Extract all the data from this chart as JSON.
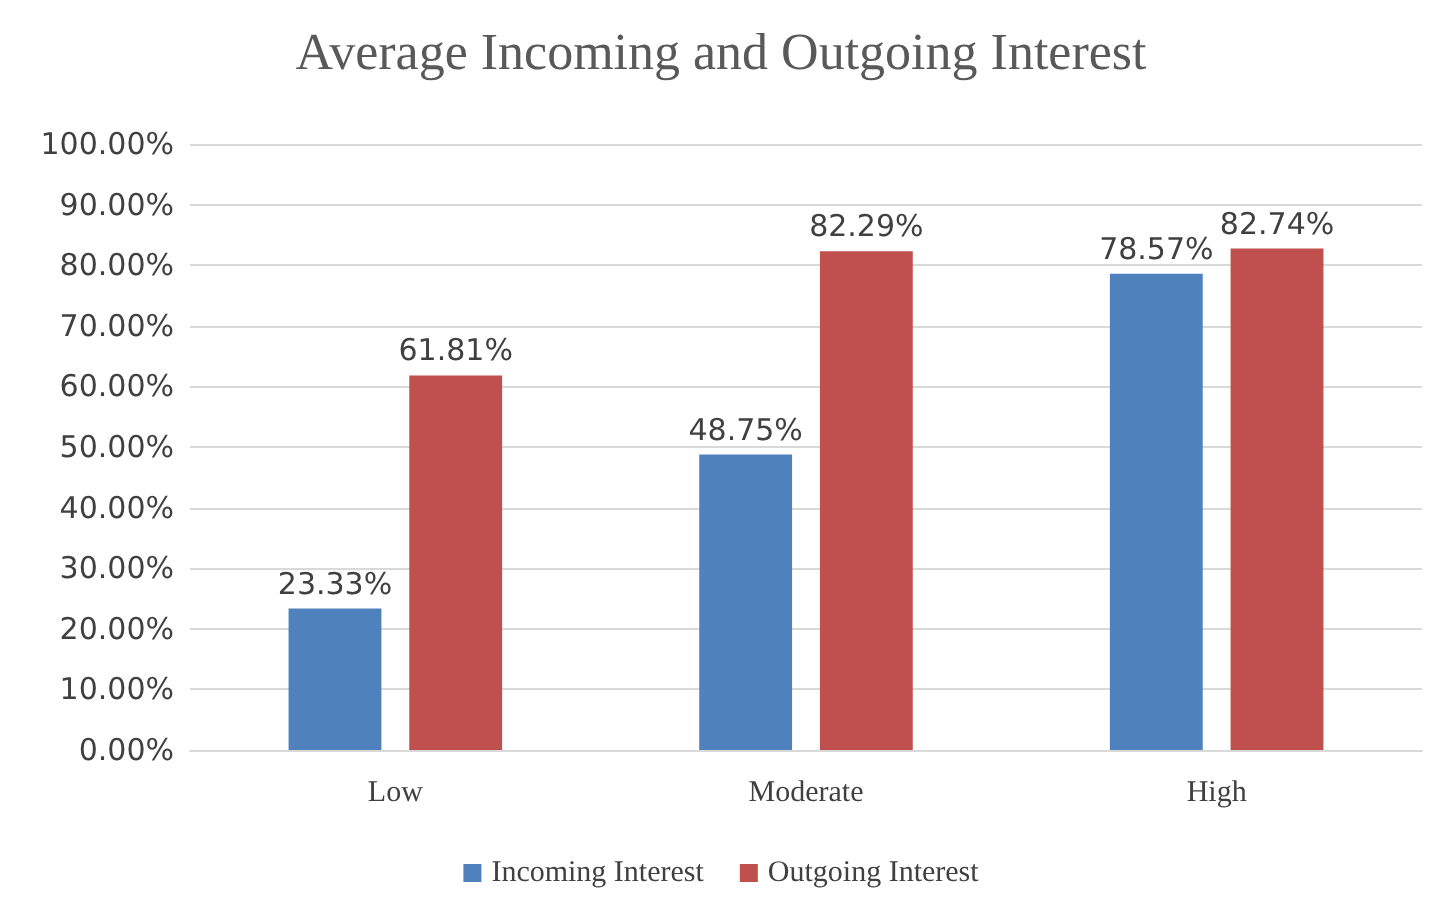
{
  "chart_data": {
    "type": "bar",
    "title": "Average Incoming and Outgoing Interest",
    "categories": [
      "Low",
      "Moderate",
      "High"
    ],
    "series": [
      {
        "name": "Incoming Interest",
        "color": "#4f81bd",
        "values": [
          23.33,
          48.75,
          78.57
        ],
        "value_labels": [
          "23.33%",
          "48.75%",
          "78.57%"
        ]
      },
      {
        "name": "Outgoing Interest",
        "color": "#c0504d",
        "values": [
          61.81,
          82.29,
          82.74
        ],
        "value_labels": [
          "61.81%",
          "82.29%",
          "82.74%"
        ]
      }
    ],
    "ylim": [
      0,
      100
    ],
    "yticks": [
      {
        "value": 0,
        "label": "0.00%"
      },
      {
        "value": 10,
        "label": "10.00%"
      },
      {
        "value": 20,
        "label": "20.00%"
      },
      {
        "value": 30,
        "label": "30.00%"
      },
      {
        "value": 40,
        "label": "40.00%"
      },
      {
        "value": 50,
        "label": "50.00%"
      },
      {
        "value": 60,
        "label": "60.00%"
      },
      {
        "value": 70,
        "label": "70.00%"
      },
      {
        "value": 80,
        "label": "80.00%"
      },
      {
        "value": 90,
        "label": "90.00%"
      },
      {
        "value": 100,
        "label": "100.00%"
      }
    ],
    "grid": "y",
    "legend": "bottom"
  }
}
